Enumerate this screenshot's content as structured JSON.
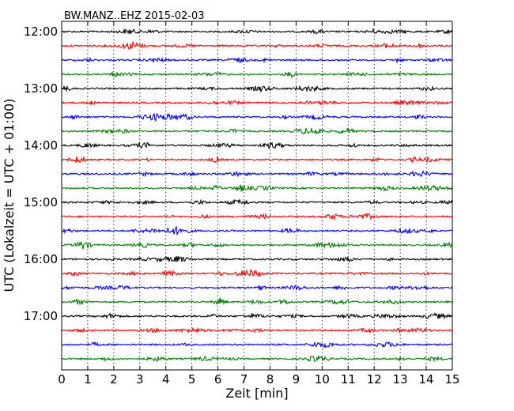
{
  "chart_data": {
    "type": "line",
    "title": "BW.MANZ..EHZ 2015-02-03",
    "xlabel": "Zeit  [min]",
    "ylabel": "UTC (Lokalzeit = UTC + 01:00)",
    "x_ticks": [
      "0",
      "1",
      "2",
      "3",
      "4",
      "5",
      "6",
      "7",
      "8",
      "9",
      "10",
      "11",
      "12",
      "13",
      "14",
      "15"
    ],
    "xlim": [
      0,
      15
    ],
    "y_ticks": [
      "12:00",
      "13:00",
      "14:00",
      "15:00",
      "16:00",
      "17:00"
    ],
    "trace_interval_min": 15,
    "grid": "vertical dotted at each minute",
    "series_colors": [
      "#000000",
      "#ff0000",
      "#0000ff",
      "#008000"
    ],
    "traces": [
      {
        "start": "12:00",
        "color": "#000000"
      },
      {
        "start": "12:15",
        "color": "#ff0000"
      },
      {
        "start": "12:30",
        "color": "#0000ff"
      },
      {
        "start": "12:45",
        "color": "#008000"
      },
      {
        "start": "13:00",
        "color": "#000000"
      },
      {
        "start": "13:15",
        "color": "#ff0000"
      },
      {
        "start": "13:30",
        "color": "#0000ff"
      },
      {
        "start": "13:45",
        "color": "#008000"
      },
      {
        "start": "14:00",
        "color": "#000000"
      },
      {
        "start": "14:15",
        "color": "#ff0000"
      },
      {
        "start": "14:30",
        "color": "#0000ff"
      },
      {
        "start": "14:45",
        "color": "#008000"
      },
      {
        "start": "15:00",
        "color": "#000000"
      },
      {
        "start": "15:15",
        "color": "#ff0000"
      },
      {
        "start": "15:30",
        "color": "#0000ff"
      },
      {
        "start": "15:45",
        "color": "#008000"
      },
      {
        "start": "16:00",
        "color": "#000000"
      },
      {
        "start": "16:15",
        "color": "#ff0000"
      },
      {
        "start": "16:30",
        "color": "#0000ff"
      },
      {
        "start": "16:45",
        "color": "#008000"
      },
      {
        "start": "17:00",
        "color": "#000000"
      },
      {
        "start": "17:15",
        "color": "#ff0000"
      },
      {
        "start": "17:30",
        "color": "#0000ff"
      },
      {
        "start": "17:45",
        "color": "#008000"
      }
    ]
  }
}
